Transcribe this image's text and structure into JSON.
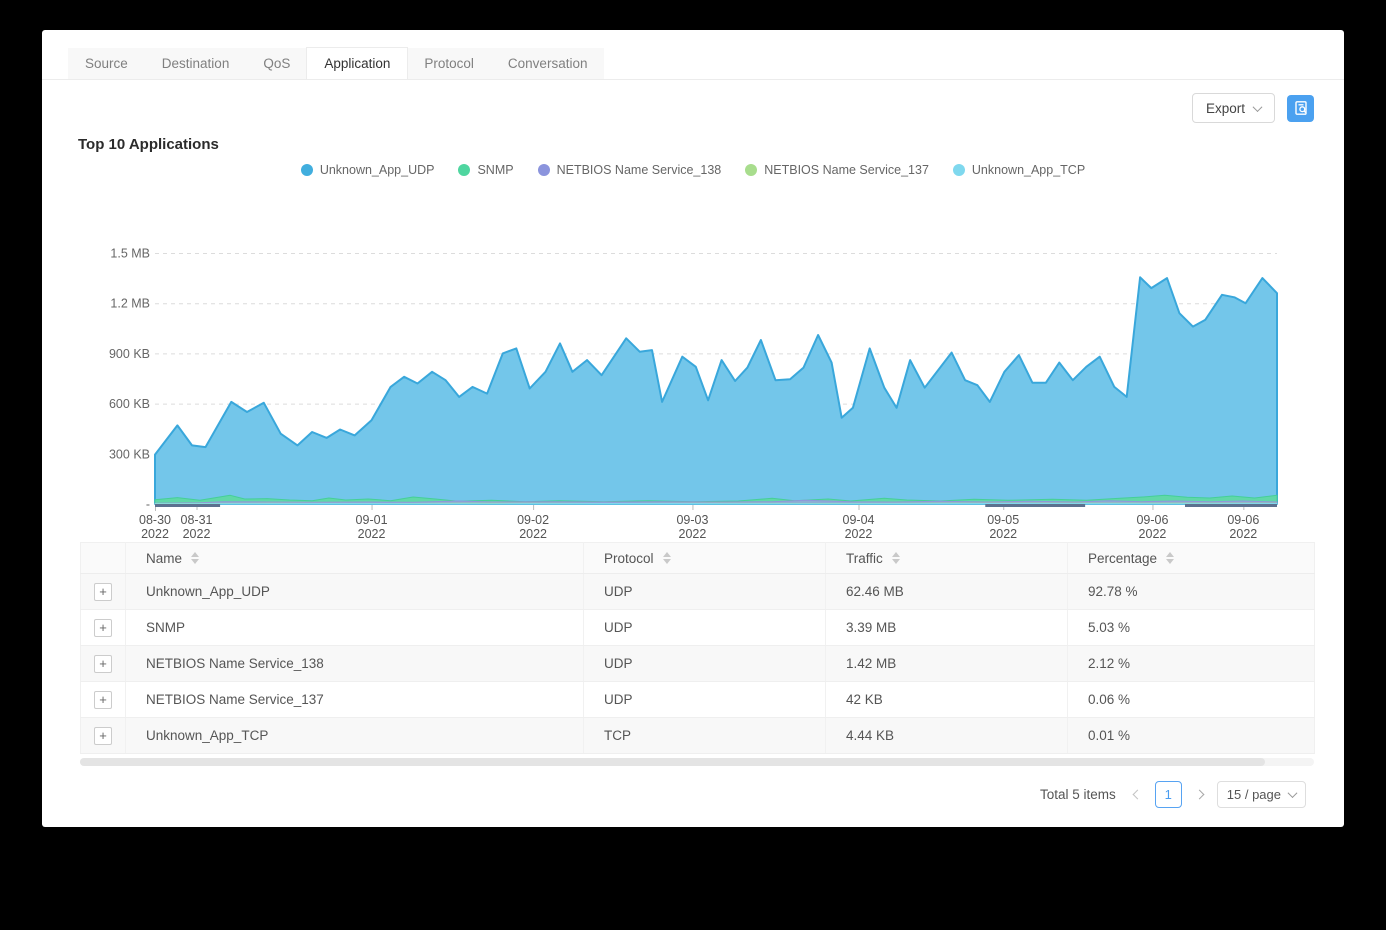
{
  "tabs": [
    {
      "label": "Source",
      "active": false
    },
    {
      "label": "Destination",
      "active": false
    },
    {
      "label": "QoS",
      "active": false
    },
    {
      "label": "Application",
      "active": true
    },
    {
      "label": "Protocol",
      "active": false
    },
    {
      "label": "Conversation",
      "active": false
    }
  ],
  "toolbar": {
    "export_label": "Export"
  },
  "section": {
    "title": "Top 10 Applications"
  },
  "chart_data": {
    "type": "area",
    "title": "Top 10 Applications",
    "unit": "KB",
    "grid": "dashed",
    "legend_position": "top",
    "ylim": [
      0,
      1500
    ],
    "y_ticks": [
      {
        "label": "1.5 MB",
        "kb": 1500
      },
      {
        "label": "1.2 MB",
        "kb": 1200
      },
      {
        "label": "900 KB",
        "kb": 900
      },
      {
        "label": "600 KB",
        "kb": 600
      },
      {
        "label": "300 KB",
        "kb": 300
      },
      {
        "label": "-",
        "kb": 0
      }
    ],
    "x_ticks": [
      {
        "label": "08-30",
        "sub": "2022",
        "f": 0.0
      },
      {
        "label": "08-31",
        "sub": "2022",
        "f": 0.037
      },
      {
        "label": "09-01",
        "sub": "2022",
        "f": 0.193
      },
      {
        "label": "09-02",
        "sub": "2022",
        "f": 0.337
      },
      {
        "label": "09-03",
        "sub": "2022",
        "f": 0.479
      },
      {
        "label": "09-04",
        "sub": "2022",
        "f": 0.627
      },
      {
        "label": "09-05",
        "sub": "2022",
        "f": 0.756
      },
      {
        "label": "09-06",
        "sub": "2022",
        "f": 0.889
      },
      {
        "label": "09-06",
        "sub": "2022",
        "f": 0.97
      }
    ],
    "axis_segments": [
      [
        0,
        0.058
      ],
      [
        0.74,
        0.829
      ],
      [
        0.918,
        1.0
      ]
    ],
    "series": [
      {
        "name": "Unknown_App_UDP",
        "color": "#39a7db",
        "fill": "#73c6ea",
        "fill_opacity": 1,
        "stroke_width": 2,
        "dot": "#41aede",
        "points": [
          [
            0,
            295
          ],
          [
            0.02,
            470
          ],
          [
            0.033,
            350
          ],
          [
            0.045,
            340
          ],
          [
            0.068,
            610
          ],
          [
            0.082,
            550
          ],
          [
            0.097,
            605
          ],
          [
            0.112,
            420
          ],
          [
            0.127,
            350
          ],
          [
            0.14,
            430
          ],
          [
            0.153,
            395
          ],
          [
            0.165,
            445
          ],
          [
            0.178,
            410
          ],
          [
            0.193,
            500
          ],
          [
            0.21,
            700
          ],
          [
            0.222,
            760
          ],
          [
            0.234,
            720
          ],
          [
            0.247,
            790
          ],
          [
            0.259,
            740
          ],
          [
            0.271,
            640
          ],
          [
            0.283,
            700
          ],
          [
            0.296,
            660
          ],
          [
            0.31,
            900
          ],
          [
            0.322,
            930
          ],
          [
            0.334,
            690
          ],
          [
            0.348,
            790
          ],
          [
            0.361,
            960
          ],
          [
            0.372,
            790
          ],
          [
            0.385,
            860
          ],
          [
            0.398,
            770
          ],
          [
            0.42,
            990
          ],
          [
            0.432,
            910
          ],
          [
            0.443,
            920
          ],
          [
            0.452,
            610
          ],
          [
            0.47,
            880
          ],
          [
            0.482,
            820
          ],
          [
            0.493,
            620
          ],
          [
            0.505,
            860
          ],
          [
            0.517,
            735
          ],
          [
            0.528,
            815
          ],
          [
            0.54,
            980
          ],
          [
            0.553,
            740
          ],
          [
            0.566,
            745
          ],
          [
            0.578,
            815
          ],
          [
            0.591,
            1010
          ],
          [
            0.603,
            845
          ],
          [
            0.612,
            515
          ],
          [
            0.622,
            575
          ],
          [
            0.637,
            930
          ],
          [
            0.65,
            695
          ],
          [
            0.661,
            575
          ],
          [
            0.673,
            860
          ],
          [
            0.686,
            695
          ],
          [
            0.71,
            905
          ],
          [
            0.722,
            740
          ],
          [
            0.733,
            710
          ],
          [
            0.744,
            610
          ],
          [
            0.757,
            790
          ],
          [
            0.77,
            890
          ],
          [
            0.782,
            725
          ],
          [
            0.794,
            725
          ],
          [
            0.806,
            845
          ],
          [
            0.818,
            740
          ],
          [
            0.83,
            820
          ],
          [
            0.842,
            880
          ],
          [
            0.855,
            700
          ],
          [
            0.866,
            640
          ],
          [
            0.878,
            1355
          ],
          [
            0.888,
            1290
          ],
          [
            0.902,
            1350
          ],
          [
            0.913,
            1140
          ],
          [
            0.925,
            1060
          ],
          [
            0.936,
            1100
          ],
          [
            0.951,
            1250
          ],
          [
            0.962,
            1235
          ],
          [
            0.972,
            1200
          ],
          [
            0.987,
            1350
          ],
          [
            1,
            1260
          ]
        ]
      },
      {
        "name": "SNMP",
        "color": "#45cf97",
        "fill": "#5fd9a4",
        "fill_opacity": 0.95,
        "stroke_width": 1,
        "dot": "#4fd6a0",
        "points": [
          [
            0,
            25
          ],
          [
            0.02,
            38
          ],
          [
            0.04,
            22
          ],
          [
            0.067,
            52
          ],
          [
            0.08,
            30
          ],
          [
            0.1,
            32
          ],
          [
            0.12,
            24
          ],
          [
            0.14,
            20
          ],
          [
            0.155,
            36
          ],
          [
            0.17,
            24
          ],
          [
            0.19,
            30
          ],
          [
            0.21,
            20
          ],
          [
            0.23,
            42
          ],
          [
            0.25,
            30
          ],
          [
            0.27,
            16
          ],
          [
            0.3,
            22
          ],
          [
            0.33,
            14
          ],
          [
            0.36,
            20
          ],
          [
            0.4,
            14
          ],
          [
            0.44,
            20
          ],
          [
            0.48,
            14
          ],
          [
            0.52,
            18
          ],
          [
            0.55,
            34
          ],
          [
            0.57,
            20
          ],
          [
            0.6,
            30
          ],
          [
            0.62,
            18
          ],
          [
            0.65,
            34
          ],
          [
            0.67,
            24
          ],
          [
            0.7,
            18
          ],
          [
            0.73,
            28
          ],
          [
            0.76,
            22
          ],
          [
            0.8,
            28
          ],
          [
            0.83,
            22
          ],
          [
            0.86,
            34
          ],
          [
            0.88,
            42
          ],
          [
            0.9,
            52
          ],
          [
            0.92,
            40
          ],
          [
            0.94,
            36
          ],
          [
            0.96,
            48
          ],
          [
            0.98,
            36
          ],
          [
            1,
            52
          ]
        ]
      },
      {
        "name": "NETBIOS Name Service_138",
        "color": "#8f97da",
        "fill": "#9ba3e0",
        "fill_opacity": 0.8,
        "stroke_width": 1,
        "dot": "#8b94dd",
        "points": [
          [
            0,
            4
          ],
          [
            0.04,
            8
          ],
          [
            0.06,
            14
          ],
          [
            0.1,
            12
          ],
          [
            0.14,
            10
          ],
          [
            0.19,
            12
          ],
          [
            0.23,
            10
          ],
          [
            0.27,
            18
          ],
          [
            0.3,
            12
          ],
          [
            0.35,
            14
          ],
          [
            0.4,
            12
          ],
          [
            0.45,
            14
          ],
          [
            0.5,
            12
          ],
          [
            0.55,
            14
          ],
          [
            0.58,
            22
          ],
          [
            0.62,
            14
          ],
          [
            0.66,
            12
          ],
          [
            0.7,
            16
          ],
          [
            0.74,
            12
          ],
          [
            0.78,
            16
          ],
          [
            0.82,
            12
          ],
          [
            0.85,
            20
          ],
          [
            0.88,
            14
          ],
          [
            0.91,
            18
          ],
          [
            0.94,
            14
          ],
          [
            0.97,
            18
          ],
          [
            1,
            12
          ]
        ]
      },
      {
        "name": "NETBIOS Name Service_137",
        "color": "#a9dc8e",
        "fill": "#b5e29c",
        "fill_opacity": 0.9,
        "stroke_width": 1,
        "dot": "#a8dd8d",
        "points": [
          [
            0,
            3
          ],
          [
            0.1,
            4
          ],
          [
            0.2,
            3
          ],
          [
            0.3,
            5
          ],
          [
            0.4,
            3
          ],
          [
            0.5,
            4
          ],
          [
            0.6,
            3
          ],
          [
            0.7,
            5
          ],
          [
            0.8,
            4
          ],
          [
            0.9,
            5
          ],
          [
            1,
            4
          ]
        ]
      },
      {
        "name": "Unknown_App_TCP",
        "color": "#7fd8ee",
        "fill": "#8edcf0",
        "fill_opacity": 0.9,
        "stroke_width": 1,
        "dot": "#7fd8ee",
        "points": [
          [
            0,
            2
          ],
          [
            0.15,
            3
          ],
          [
            0.3,
            2
          ],
          [
            0.45,
            3
          ],
          [
            0.6,
            2
          ],
          [
            0.75,
            3
          ],
          [
            0.9,
            2
          ],
          [
            1,
            3
          ]
        ]
      }
    ]
  },
  "table": {
    "expand_symbol": "+",
    "columns": [
      {
        "label": "Name",
        "sortable": true
      },
      {
        "label": "Protocol",
        "sortable": true
      },
      {
        "label": "Traffic",
        "sortable": true
      },
      {
        "label": "Percentage",
        "sortable": true
      }
    ],
    "rows": [
      {
        "name": "Unknown_App_UDP",
        "protocol": "UDP",
        "traffic": "62.46 MB",
        "percentage": "92.78 %"
      },
      {
        "name": "SNMP",
        "protocol": "UDP",
        "traffic": "3.39 MB",
        "percentage": "5.03 %"
      },
      {
        "name": "NETBIOS Name Service_138",
        "protocol": "UDP",
        "traffic": "1.42 MB",
        "percentage": "2.12 %"
      },
      {
        "name": "NETBIOS Name Service_137",
        "protocol": "UDP",
        "traffic": "42 KB",
        "percentage": "0.06 %"
      },
      {
        "name": "Unknown_App_TCP",
        "protocol": "TCP",
        "traffic": "4.44 KB",
        "percentage": "0.01 %"
      }
    ]
  },
  "pagination": {
    "total_label": "Total 5 items",
    "current_page": "1",
    "page_size_label": "15 / page"
  }
}
